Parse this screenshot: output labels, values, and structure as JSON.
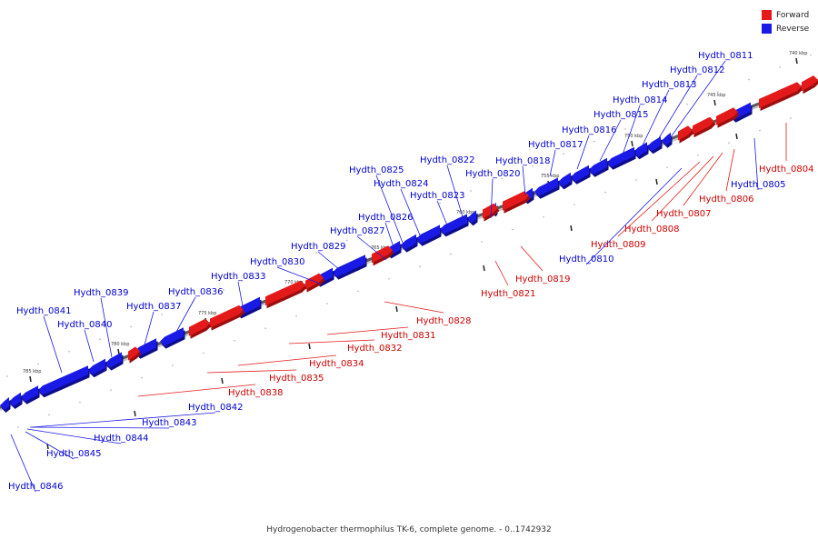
{
  "colors": {
    "forward": "#e41a1a",
    "reverse": "#1a1ae6",
    "forward_dark": "#9a0e0e",
    "reverse_dark": "#0d0d8a",
    "forward_label": "#cc0000",
    "reverse_label": "#0000cc",
    "axis": "#5a5a5a",
    "tick": "#222222"
  },
  "legend": [
    {
      "label": "Forward",
      "color": "#e41a1a"
    },
    {
      "label": "Reverse",
      "color": "#1a1ae6"
    }
  ],
  "caption": "Hydrogenobacter thermophilus TK-6, complete genome. - 0..1742932",
  "ticks": [
    "740 kbp",
    "745 kbp",
    "750 kbp",
    "755 kbp",
    "760 kbp",
    "765 kbp",
    "770 kbp",
    "775 kbp",
    "780 kbp",
    "785 kbp"
  ],
  "genes": [
    {
      "name": "Hydth_0804",
      "strand": "forward"
    },
    {
      "name": "Hydth_0805",
      "strand": "reverse"
    },
    {
      "name": "Hydth_0806",
      "strand": "forward"
    },
    {
      "name": "Hydth_0807",
      "strand": "forward"
    },
    {
      "name": "Hydth_0808",
      "strand": "forward"
    },
    {
      "name": "Hydth_0809",
      "strand": "forward"
    },
    {
      "name": "Hydth_0810",
      "strand": "reverse"
    },
    {
      "name": "Hydth_0811",
      "strand": "reverse"
    },
    {
      "name": "Hydth_0812",
      "strand": "reverse"
    },
    {
      "name": "Hydth_0813",
      "strand": "reverse"
    },
    {
      "name": "Hydth_0814",
      "strand": "reverse"
    },
    {
      "name": "Hydth_0815",
      "strand": "reverse"
    },
    {
      "name": "Hydth_0816",
      "strand": "reverse"
    },
    {
      "name": "Hydth_0817",
      "strand": "reverse"
    },
    {
      "name": "Hydth_0818",
      "strand": "reverse"
    },
    {
      "name": "Hydth_0819",
      "strand": "forward"
    },
    {
      "name": "Hydth_0820",
      "strand": "reverse"
    },
    {
      "name": "Hydth_0821",
      "strand": "forward"
    },
    {
      "name": "Hydth_0822",
      "strand": "reverse"
    },
    {
      "name": "Hydth_0823",
      "strand": "reverse"
    },
    {
      "name": "Hydth_0824",
      "strand": "reverse"
    },
    {
      "name": "Hydth_0825",
      "strand": "reverse"
    },
    {
      "name": "Hydth_0826",
      "strand": "reverse"
    },
    {
      "name": "Hydth_0827",
      "strand": "reverse"
    },
    {
      "name": "Hydth_0828",
      "strand": "forward"
    },
    {
      "name": "Hydth_0829",
      "strand": "reverse"
    },
    {
      "name": "Hydth_0830",
      "strand": "reverse"
    },
    {
      "name": "Hydth_0831",
      "strand": "forward"
    },
    {
      "name": "Hydth_0832",
      "strand": "forward"
    },
    {
      "name": "Hydth_0833",
      "strand": "reverse"
    },
    {
      "name": "Hydth_0834",
      "strand": "forward"
    },
    {
      "name": "Hydth_0835",
      "strand": "forward"
    },
    {
      "name": "Hydth_0836",
      "strand": "reverse"
    },
    {
      "name": "Hydth_0837",
      "strand": "reverse"
    },
    {
      "name": "Hydth_0838",
      "strand": "forward"
    },
    {
      "name": "Hydth_0839",
      "strand": "reverse"
    },
    {
      "name": "Hydth_0840",
      "strand": "reverse"
    },
    {
      "name": "Hydth_0841",
      "strand": "reverse"
    },
    {
      "name": "Hydth_0842",
      "strand": "reverse"
    },
    {
      "name": "Hydth_0843",
      "strand": "reverse"
    },
    {
      "name": "Hydth_0844",
      "strand": "reverse"
    },
    {
      "name": "Hydth_0845",
      "strand": "reverse"
    },
    {
      "name": "Hydth_0846",
      "strand": "reverse"
    }
  ]
}
